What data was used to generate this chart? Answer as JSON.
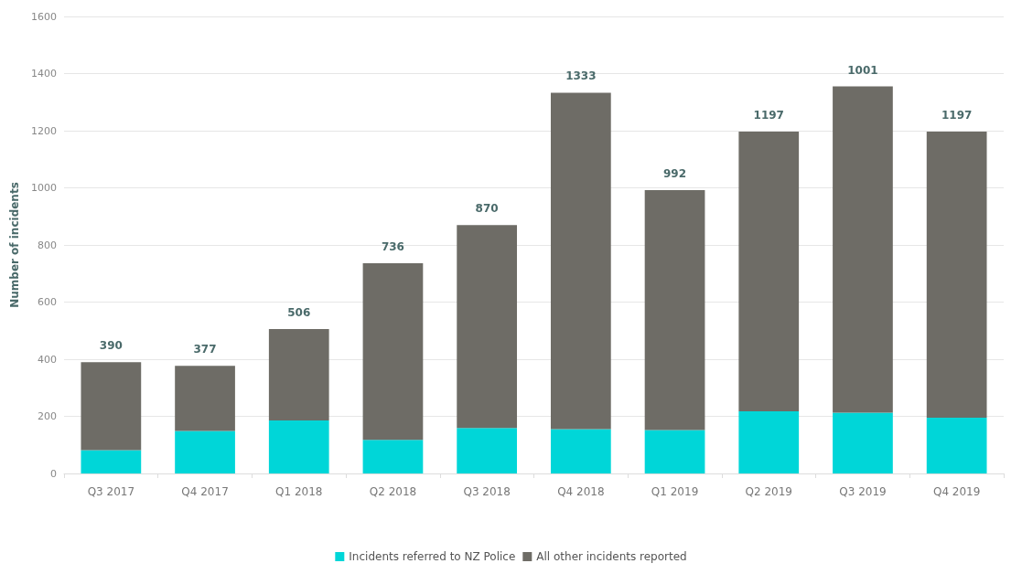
{
  "chart_data": {
    "type": "bar",
    "ylabel": "Number of incidents",
    "stacked": true,
    "categories": [
      "Q3 2017",
      "Q4 2017",
      "Q1 2018",
      "Q2 2018",
      "Q3 2018",
      "Q4 2018",
      "Q1 2019",
      "Q2 2019",
      "Q3 2019",
      "Q4 2019"
    ],
    "series": [
      {
        "name": "Incidents referred to NZ Police",
        "color": "#00d6d8",
        "values": [
          82,
          149,
          186,
          118,
          159,
          155,
          152,
          218,
          213,
          195
        ]
      },
      {
        "name": "All other incidents reported",
        "color": "#6e6c66",
        "values": [
          308,
          228,
          320,
          618,
          711,
          1178,
          840,
          979,
          1142,
          1002
        ]
      }
    ],
    "totals": [
      "390",
      "377",
      "506",
      "736",
      "870",
      "1333",
      "992",
      "1197",
      null,
      "1197"
    ],
    "annotations": [
      "1001"
    ],
    "ylim": [
      0,
      1600
    ],
    "yticks": [
      0,
      200,
      400,
      600,
      800,
      1000,
      1200,
      1400,
      1600
    ],
    "grid": "y",
    "legend": "bottom"
  }
}
